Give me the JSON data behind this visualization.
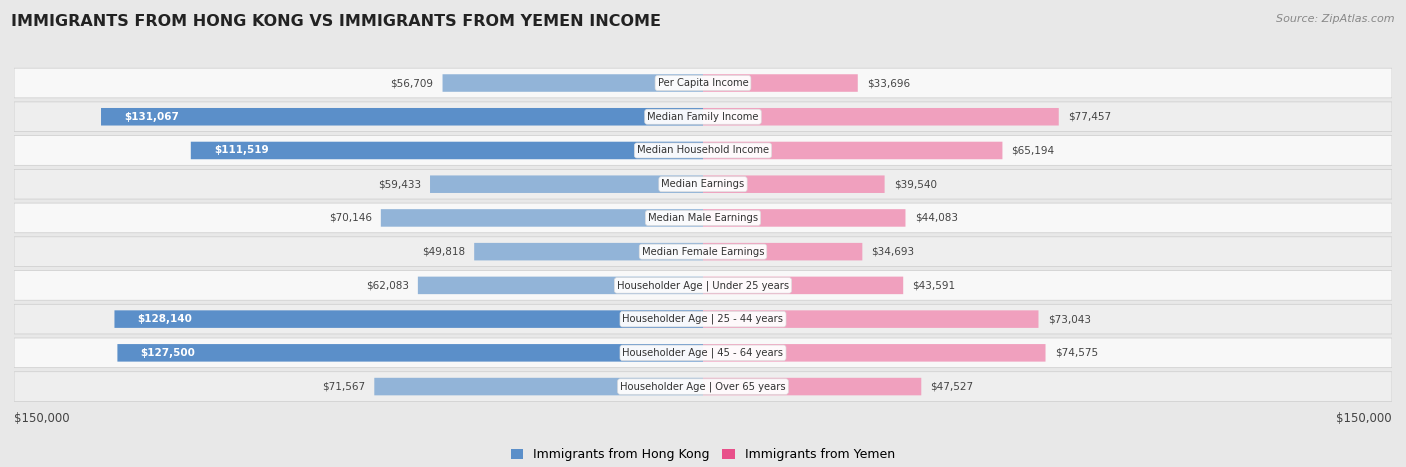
{
  "title": "IMMIGRANTS FROM HONG KONG VS IMMIGRANTS FROM YEMEN INCOME",
  "source": "Source: ZipAtlas.com",
  "categories": [
    "Per Capita Income",
    "Median Family Income",
    "Median Household Income",
    "Median Earnings",
    "Median Male Earnings",
    "Median Female Earnings",
    "Householder Age | Under 25 years",
    "Householder Age | 25 - 44 years",
    "Householder Age | 45 - 64 years",
    "Householder Age | Over 65 years"
  ],
  "hk_values": [
    56709,
    131067,
    111519,
    59433,
    70146,
    49818,
    62083,
    128140,
    127500,
    71567
  ],
  "yemen_values": [
    33696,
    77457,
    65194,
    39540,
    44083,
    34693,
    43591,
    73043,
    74575,
    47527
  ],
  "hk_labels": [
    "$56,709",
    "$131,067",
    "$111,519",
    "$59,433",
    "$70,146",
    "$49,818",
    "$62,083",
    "$128,140",
    "$127,500",
    "$71,567"
  ],
  "yemen_labels": [
    "$33,696",
    "$77,457",
    "$65,194",
    "$39,540",
    "$44,083",
    "$34,693",
    "$43,591",
    "$73,043",
    "$74,575",
    "$47,527"
  ],
  "max_val": 150000,
  "hk_color_light": "#92b4d8",
  "hk_color_dark": "#5b8fc9",
  "yemen_color_light": "#f0a0be",
  "yemen_color_dark": "#e8508a",
  "hk_threshold": 100000,
  "yemen_threshold": 100000,
  "legend_hk": "Immigrants from Hong Kong",
  "legend_yemen": "Immigrants from Yemen",
  "page_bg": "#e8e8e8",
  "row_bg_even": "#f8f8f8",
  "row_bg_odd": "#eeeeee"
}
